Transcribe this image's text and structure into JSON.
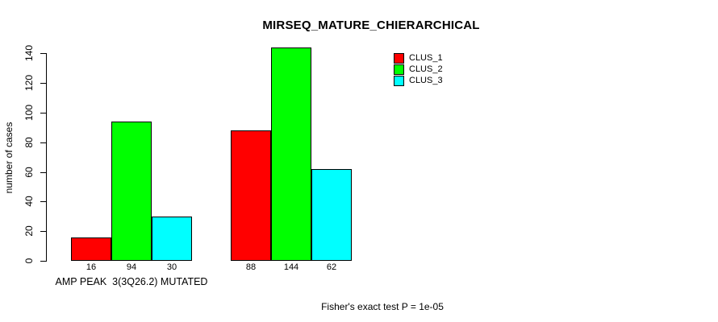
{
  "chart_data": {
    "type": "bar",
    "title": "MIRSEQ_MATURE_CHIERARCHICAL",
    "ylabel": "number of cases",
    "xlabel": "",
    "ylim": [
      0,
      140
    ],
    "yticks": [
      0,
      20,
      40,
      60,
      80,
      100,
      120,
      140
    ],
    "grid": false,
    "categories": [
      "AMP PEAK  3(3Q26.2) MUTATED",
      ""
    ],
    "series": [
      {
        "name": "CLUS_1",
        "color": "#ff0000",
        "values": [
          16,
          88
        ]
      },
      {
        "name": "CLUS_2",
        "color": "#00ff00",
        "values": [
          94,
          144
        ]
      },
      {
        "name": "CLUS_3",
        "color": "#00ffff",
        "values": [
          30,
          62
        ]
      }
    ],
    "bar_value_labels_shown": true,
    "legend": {
      "position": "top-right",
      "entries": [
        "CLUS_1",
        "CLUS_2",
        "CLUS_3"
      ]
    },
    "annotations": {
      "footnote": "Fisher's exact test P = 1e-05"
    }
  }
}
